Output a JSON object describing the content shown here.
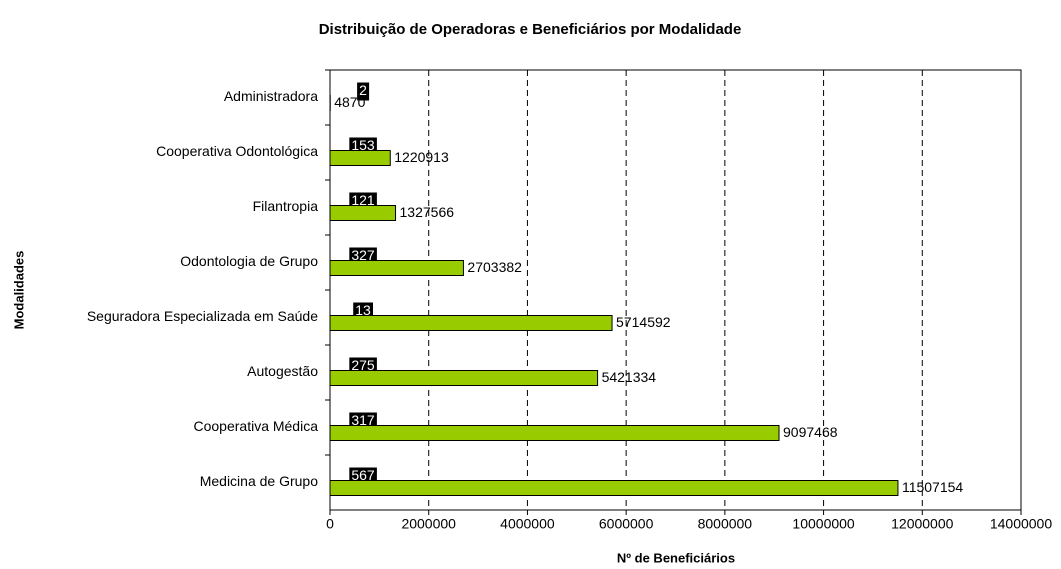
{
  "chart_data": {
    "type": "hbar",
    "title": "Distribuição de Operadoras e Beneficiários por Modalidade",
    "y_label": "Modalidades",
    "x_label": "Nº de Beneficiários",
    "categories": [
      "Administradora",
      "Cooperativa Odontológica",
      "Filantropia",
      "Odontologia de Grupo",
      "Seguradora Especializada em Saúde",
      "Autogestão",
      "Cooperativa Médica",
      "Medicina de Grupo"
    ],
    "series": [
      {
        "color": "#000000",
        "values": [
          2,
          153,
          121,
          327,
          13,
          275,
          317,
          567
        ]
      },
      {
        "color": "#99cc00",
        "values": [
          4870,
          1220913,
          1327566,
          2703382,
          5714592,
          5421334,
          9097468,
          11507154
        ]
      }
    ],
    "xlim": [
      0,
      14000000
    ],
    "xticks": [
      0,
      2000000,
      4000000,
      6000000,
      8000000,
      10000000,
      12000000,
      14000000
    ],
    "grid": true
  }
}
